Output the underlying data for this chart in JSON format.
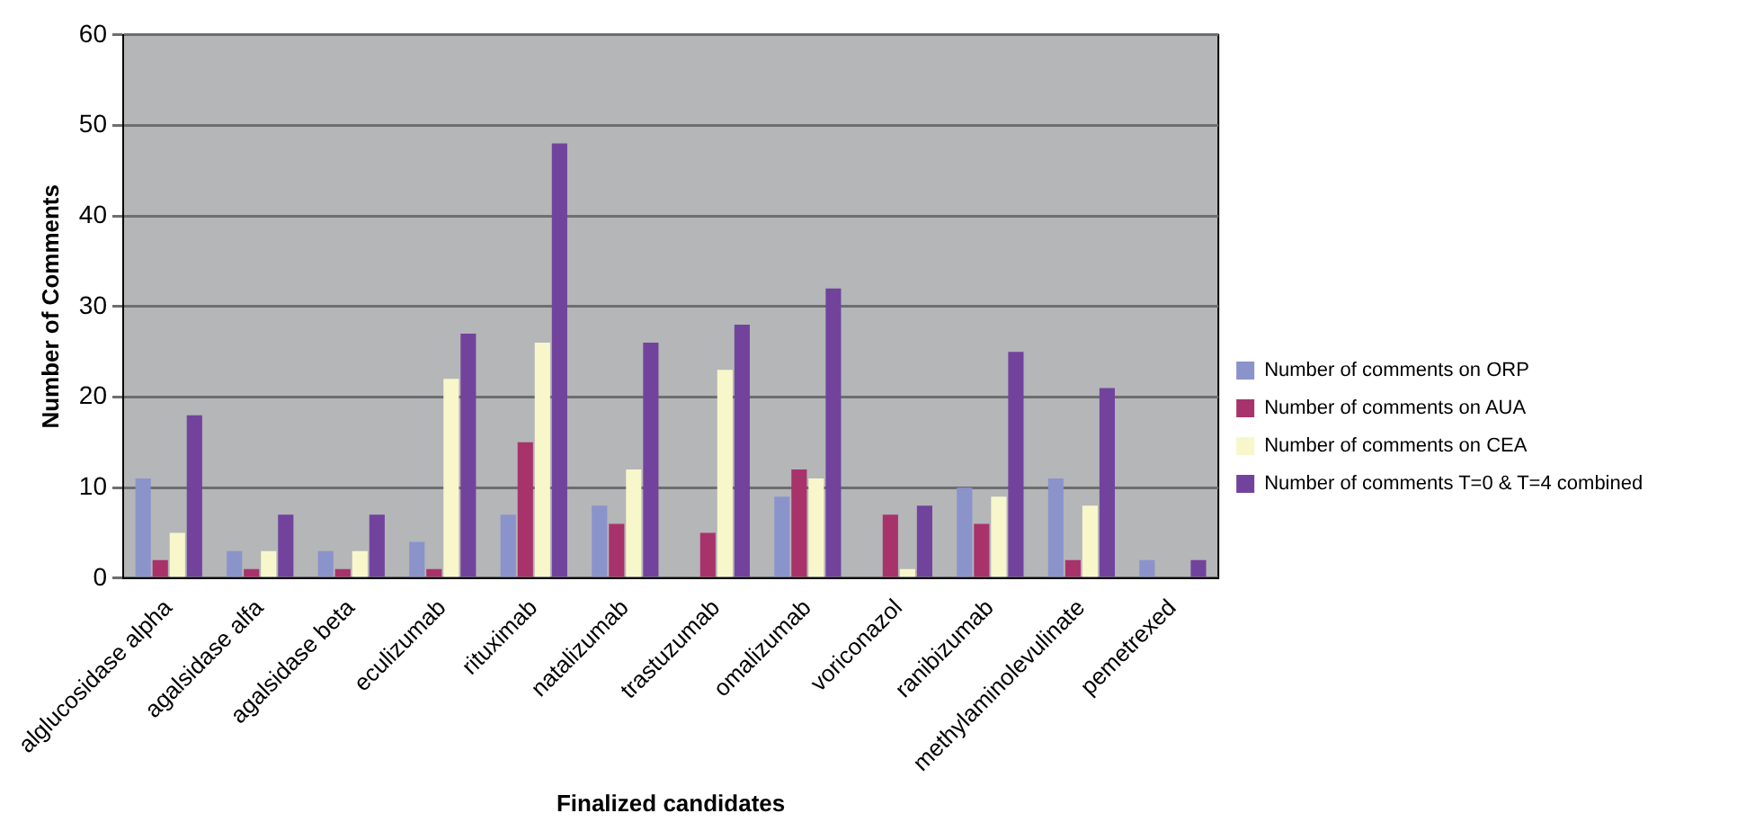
{
  "chart_data": {
    "type": "bar",
    "xlabel": "Finalized candidates",
    "ylabel": "Number of Comments",
    "categories": [
      "alglucosidase alpha",
      "agalsidase alfa",
      "agalsidase beta",
      "eculizumab",
      "rituximab",
      "natalizumab",
      "trastuzumab",
      "omalizumab",
      "voriconazol",
      "ranibizumab",
      "methylaminolevulinate",
      "pemetrexed"
    ],
    "series": [
      {
        "name": "Number of comments on ORP",
        "color": "#8b93cb",
        "values": [
          11,
          3,
          3,
          4,
          7,
          8,
          0,
          9,
          0,
          10,
          11,
          2
        ]
      },
      {
        "name": "Number of comments on AUA",
        "color": "#a8336b",
        "values": [
          2,
          1,
          1,
          1,
          15,
          6,
          5,
          12,
          7,
          6,
          2,
          0
        ]
      },
      {
        "name": "Number of comments on CEA",
        "color": "#f8f7cb",
        "values": [
          5,
          3,
          3,
          22,
          26,
          12,
          23,
          11,
          1,
          9,
          8,
          0
        ]
      },
      {
        "name": "Number of comments T=0 & T=4 combined",
        "color": "#72439c",
        "values": [
          18,
          7,
          7,
          27,
          48,
          26,
          28,
          32,
          8,
          25,
          21,
          2
        ]
      }
    ],
    "ylim": [
      0,
      60
    ],
    "yticks": [
      0,
      10,
      20,
      30,
      40,
      50,
      60
    ],
    "grid": "y",
    "legend": "right"
  }
}
